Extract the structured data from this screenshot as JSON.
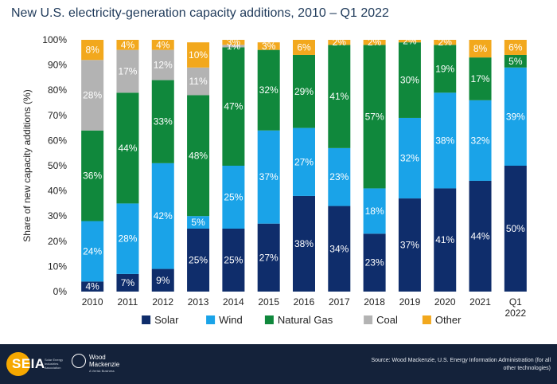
{
  "chart_data": {
    "type": "bar",
    "stacked": true,
    "title": "New U.S. electricity-generation capacity additions, 2010 – Q1 2022",
    "ylabel": "Share of new capacity additions (%)",
    "xlabel": "",
    "ylim": [
      0,
      100
    ],
    "yticks": [
      "0%",
      "10%",
      "20%",
      "30%",
      "40%",
      "50%",
      "60%",
      "70%",
      "80%",
      "90%",
      "100%"
    ],
    "categories": [
      "2010",
      "2011",
      "2012",
      "2013",
      "2014",
      "2015",
      "2016",
      "2017",
      "2018",
      "2019",
      "2020",
      "2021",
      "Q1 2022"
    ],
    "series": [
      {
        "name": "Solar",
        "color": "#0f2d6b",
        "values": [
          4,
          7,
          9,
          25,
          25,
          27,
          38,
          34,
          23,
          37,
          41,
          44,
          50
        ],
        "labels": [
          "4%",
          "7%",
          "9%",
          "25%",
          "25%",
          "27%",
          "38%",
          "34%",
          "23%",
          "37%",
          "41%",
          "44%",
          "50%"
        ]
      },
      {
        "name": "Wind",
        "color": "#1aa3e8",
        "values": [
          24,
          28,
          42,
          5,
          25,
          37,
          27,
          23,
          18,
          32,
          38,
          32,
          39
        ],
        "labels": [
          "24%",
          "28%",
          "42%",
          "5%",
          "25%",
          "37%",
          "27%",
          "23%",
          "18%",
          "32%",
          "38%",
          "32%",
          "39%"
        ]
      },
      {
        "name": "Natural Gas",
        "color": "#10883c",
        "values": [
          36,
          44,
          33,
          48,
          47,
          32,
          29,
          41,
          57,
          30,
          19,
          17,
          5
        ],
        "labels": [
          "36%",
          "44%",
          "33%",
          "48%",
          "47%",
          "32%",
          "29%",
          "41%",
          "57%",
          "30%",
          "19%",
          "17%",
          "5%"
        ]
      },
      {
        "name": "Coal",
        "color": "#b3b3b3",
        "values": [
          28,
          17,
          12,
          11,
          1,
          0,
          0,
          0,
          0,
          0,
          0,
          0,
          0
        ],
        "labels": [
          "28%",
          "17%",
          "12%",
          "11%",
          "1%",
          "",
          "",
          "",
          "",
          "",
          "",
          "",
          ""
        ]
      },
      {
        "name": "Other",
        "color": "#f2a81d",
        "values": [
          8,
          4,
          4,
          10,
          3,
          3,
          6,
          2,
          2,
          2,
          2,
          8,
          6
        ],
        "labels": [
          "8%",
          "4%",
          "4%",
          "10%",
          "3%",
          "3%",
          "6%",
          "2%",
          "2%",
          "2%",
          "2%",
          "8%",
          "6%"
        ]
      }
    ],
    "legend_position": "bottom",
    "grid": true
  },
  "footer": {
    "seia_logo_text": "SEIA",
    "seia_subtext": "Solar Energy Industries Association",
    "wm_logo_text": "Wood Mackenzie",
    "wm_subtext": "A Verisk Business",
    "source": "Source: Wood Mackenzie, U.S. Energy Information Administration (for all other technologies)"
  }
}
